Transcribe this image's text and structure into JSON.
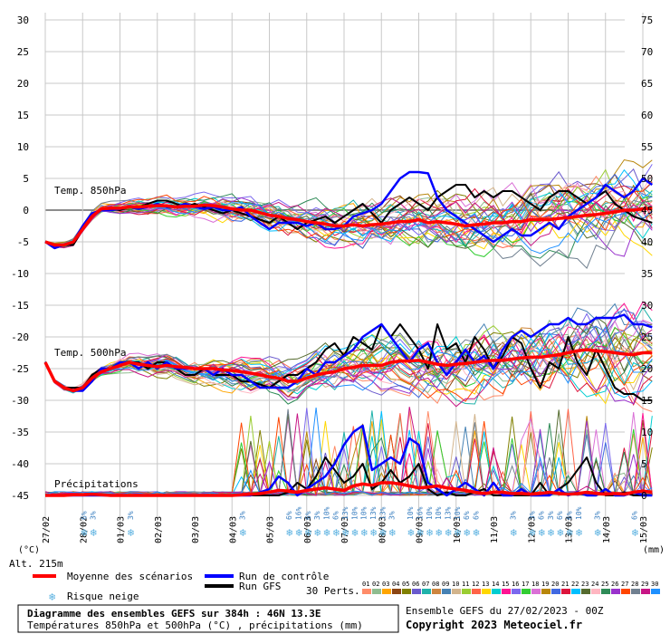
{
  "chart_data": {
    "type": "line",
    "title": "Diagramme des ensembles GEFS sur 384h : 46N 13.3E",
    "subtitle": "Températures 850hPa et 500hPa (°C) , précipitations (mm)",
    "run_info": "Ensemble GEFS du 27/02/2023 - 00Z",
    "copyright": "Copyright 2023 Meteociel.fr",
    "altitude_label": "Alt. 215m",
    "left_unit": "(°C)",
    "right_unit": "(mm)",
    "left_axis_ticks": [
      "30",
      "25",
      "20",
      "15",
      "10",
      "5",
      "0",
      "-5",
      "-10",
      "-15",
      "-20",
      "-25",
      "-30",
      "-35",
      "-40",
      "-45"
    ],
    "right_axis_ticks": [
      "75",
      "70",
      "65",
      "60",
      "55",
      "50",
      "45",
      "40",
      "35",
      "30",
      "25",
      "20",
      "15",
      "10",
      "5",
      "0"
    ],
    "left_ylim": [
      -45,
      30
    ],
    "right_ylim": [
      0,
      75
    ],
    "x_ticks": [
      "27/02",
      "28/02",
      "01/03",
      "02/03",
      "03/03",
      "04/03",
      "05/03",
      "06/03",
      "07/03",
      "08/03",
      "09/03",
      "10/03",
      "11/03",
      "12/03",
      "13/03",
      "14/03",
      "15/03"
    ],
    "section_labels": {
      "t850": "Temp. 850hPa",
      "t500": "Temp. 500hPa",
      "precip": "Précipitations"
    },
    "legend": {
      "mean": "Moyenne des scénarios",
      "control": "Run de contrôle",
      "gfs": "Run GFS",
      "snow": "Risque neige",
      "perts_label": "30 Perts.",
      "pert_numbers": [
        "01",
        "02",
        "03",
        "04",
        "05",
        "06",
        "07",
        "08",
        "09",
        "10",
        "11",
        "12",
        "13",
        "14",
        "15",
        "16",
        "17",
        "18",
        "19",
        "20",
        "21",
        "22",
        "23",
        "24",
        "25",
        "26",
        "27",
        "28",
        "29",
        "30"
      ]
    },
    "colors": {
      "mean": "#ff0000",
      "control": "#0000ff",
      "gfs": "#000000",
      "snow": "#58b0e0",
      "perts": [
        "#ff8c69",
        "#8fbc8f",
        "#ffa500",
        "#8b4513",
        "#808000",
        "#6a5acd",
        "#20b2aa",
        "#cd853f",
        "#4682b4",
        "#d2b48c",
        "#9acd32",
        "#ff6347",
        "#ffd700",
        "#00ced1",
        "#ff1493",
        "#7b68ee",
        "#32cd32",
        "#da70d6",
        "#b8860b",
        "#4169e1",
        "#dc143c",
        "#00bfff",
        "#556b2f",
        "#ffb6c1",
        "#2e8b57",
        "#9932cc",
        "#ff4500",
        "#708090",
        "#c71585",
        "#1e90ff"
      ]
    },
    "snow_risk": [
      {
        "x": "28/02 00h",
        "value": "6%"
      },
      {
        "x": "28/02 06h",
        "value": "3%"
      },
      {
        "x": "01/03 06h",
        "value": "3%"
      },
      {
        "x": "04/03 06h",
        "value": "3%"
      },
      {
        "x": "05/03 12h",
        "value": "6%"
      },
      {
        "x": "05/03 18h",
        "value": "16%"
      },
      {
        "x": "06/03 00h",
        "value": "6%"
      },
      {
        "x": "06/03 06h",
        "value": "3%"
      },
      {
        "x": "06/03 12h",
        "value": "10%"
      },
      {
        "x": "06/03 18h",
        "value": "6%"
      },
      {
        "x": "07/03 00h",
        "value": "13%"
      },
      {
        "x": "07/03 06h",
        "value": "10%"
      },
      {
        "x": "07/03 12h",
        "value": "10%"
      },
      {
        "x": "07/03 18h",
        "value": "13%"
      },
      {
        "x": "08/03 00h",
        "value": "13%"
      },
      {
        "x": "08/03 06h",
        "value": "3%"
      },
      {
        "x": "08/03 18h",
        "value": "10%"
      },
      {
        "x": "09/03 00h",
        "value": "16%"
      },
      {
        "x": "09/03 06h",
        "value": "10%"
      },
      {
        "x": "09/03 12h",
        "value": "10%"
      },
      {
        "x": "09/03 18h",
        "value": "13%"
      },
      {
        "x": "10/03 00h",
        "value": "10%"
      },
      {
        "x": "10/03 06h",
        "value": "6%"
      },
      {
        "x": "10/03 12h",
        "value": "6%"
      },
      {
        "x": "11/03 12h",
        "value": "3%"
      },
      {
        "x": "12/03 00h",
        "value": "3%"
      },
      {
        "x": "12/03 06h",
        "value": "6%"
      },
      {
        "x": "12/03 12h",
        "value": "3%"
      },
      {
        "x": "12/03 18h",
        "value": "6%"
      },
      {
        "x": "13/03 00h",
        "value": "6%"
      },
      {
        "x": "13/03 06h",
        "value": "10%"
      },
      {
        "x": "13/03 18h",
        "value": "3%"
      },
      {
        "x": "14/03 18h",
        "value": "6%"
      }
    ],
    "series": [
      {
        "name": "Moyenne des scénarios (850hPa)",
        "step_hours": 6,
        "values": [
          -5,
          -5.5,
          -5.5,
          -5,
          -3,
          -1,
          0.2,
          0.3,
          0.3,
          0.5,
          0.5,
          0.6,
          0.7,
          0.7,
          0.5,
          0.6,
          0.6,
          0.8,
          0.7,
          0.5,
          0.2,
          0,
          0,
          -0.4,
          -0.8,
          -1,
          -1.3,
          -1.5,
          -1.8,
          -2,
          -2.2,
          -2.5,
          -2.5,
          -2.3,
          -2.5,
          -2.3,
          -2.2,
          -2,
          -1.8,
          -1.8,
          -1.5,
          -2,
          -1.8,
          -2,
          -2.2,
          -2.5,
          -2.3,
          -2.2,
          -2,
          -2,
          -1.8,
          -1.8,
          -1.5,
          -1.5,
          -1.5,
          -1.3,
          -1.2,
          -1,
          -0.8,
          -0.7,
          -0.5,
          -0.3,
          0,
          0,
          0.2,
          0.3
        ]
      },
      {
        "name": "Moyenne des scénarios (500hPa)",
        "step_hours": 6,
        "values": [
          -24,
          -27,
          -28,
          -28.5,
          -28,
          -26.5,
          -25.5,
          -25,
          -24.5,
          -24,
          -24.3,
          -24.5,
          -24.7,
          -24.5,
          -24.7,
          -24.8,
          -25,
          -25,
          -25,
          -25.2,
          -25.3,
          -25.5,
          -25.7,
          -26,
          -26.3,
          -26.5,
          -27,
          -27,
          -26.5,
          -26,
          -25.7,
          -25.5,
          -25,
          -24.8,
          -24.5,
          -24.5,
          -24.5,
          -24,
          -23.8,
          -23.8,
          -23.7,
          -24,
          -24.3,
          -24.5,
          -24.3,
          -24.2,
          -24,
          -23.8,
          -23.7,
          -23.7,
          -23.5,
          -23.3,
          -23.2,
          -23.2,
          -23,
          -22.8,
          -22.5,
          -22.2,
          -22,
          -22.2,
          -22.3,
          -22.5,
          -22.7,
          -22.8,
          -22.5,
          -22.5
        ]
      },
      {
        "name": "Moyenne des scénarios (Précipitations)",
        "step_hours": 6,
        "values": [
          0,
          0,
          0,
          0.1,
          0.1,
          0.2,
          0.1,
          0,
          0,
          0,
          0,
          0,
          0,
          0,
          0,
          0,
          0,
          0,
          0,
          0,
          0,
          0.1,
          0.2,
          0.3,
          0.5,
          0.8,
          0.7,
          0.5,
          0.8,
          1,
          1.2,
          1,
          0.8,
          1.5,
          1.8,
          1.6,
          2,
          2,
          1.8,
          1.5,
          1.2,
          1.3,
          1.5,
          1.2,
          1,
          0.8,
          0.5,
          0.3,
          0.5,
          0.5,
          0.3,
          0.3,
          0.2,
          0.3,
          0.5,
          0.3,
          0.2,
          0.3,
          0.5,
          0.3,
          0.2,
          0.3,
          0.2,
          0.5,
          0.7,
          0.5
        ]
      },
      {
        "name": "Run de contrôle (850hPa)",
        "step_hours": 6,
        "values": [
          -5,
          -6,
          -5.5,
          -5,
          -2.5,
          -0.5,
          0,
          0,
          0.2,
          0.5,
          0.2,
          0.5,
          1,
          0.5,
          0.5,
          1,
          0.5,
          0.2,
          0.5,
          0,
          0,
          0.5,
          -1,
          -2,
          -3,
          -2,
          -2,
          -2,
          -2.5,
          -2,
          -3,
          -3,
          -2.5,
          -1,
          -0.5,
          0,
          1,
          3,
          5,
          6,
          6,
          5.8,
          2,
          0,
          -1,
          -2,
          -3,
          -4,
          -5,
          -4,
          -3,
          -4,
          -4,
          -3,
          -2,
          -3,
          -1,
          0,
          1,
          2,
          4,
          3,
          2,
          3,
          5,
          4
        ]
      },
      {
        "name": "Run de contrôle (500hPa)",
        "step_hours": 6,
        "values": [
          -24,
          -27,
          -28,
          -28.5,
          -28.5,
          -27,
          -25,
          -25,
          -24,
          -24,
          -25,
          -24,
          -25,
          -24,
          -25,
          -25,
          -25,
          -25,
          -26,
          -25,
          -26,
          -26,
          -27,
          -28,
          -28,
          -28,
          -28,
          -27,
          -25,
          -26,
          -24,
          -24,
          -23,
          -22,
          -20,
          -19,
          -18,
          -20,
          -22,
          -24,
          -22,
          -21,
          -24,
          -26,
          -24,
          -22,
          -24,
          -23,
          -25,
          -22,
          -20,
          -19,
          -20,
          -19,
          -18,
          -18,
          -17,
          -18,
          -18,
          -17,
          -17,
          -17,
          -16.5,
          -18,
          -18,
          -18.5
        ]
      },
      {
        "name": "Run de contrôle (Précipitations)",
        "step_hours": 6,
        "values": [
          0,
          0,
          0,
          0,
          0,
          0,
          0,
          0,
          0,
          0,
          0,
          0,
          0,
          0,
          0,
          0,
          0,
          0,
          0,
          0,
          0,
          0,
          0,
          0.5,
          1,
          3,
          2,
          0,
          1,
          2,
          3,
          5,
          8,
          10,
          11,
          4,
          5,
          6,
          5,
          9,
          8,
          2,
          1,
          0,
          1,
          2,
          1,
          0,
          2,
          0,
          0,
          1,
          0,
          0,
          0,
          1,
          0,
          0.5,
          0,
          0,
          1,
          0,
          0,
          0.5,
          0,
          0
        ]
      },
      {
        "name": "Run GFS (850hPa)",
        "step_hours": 6,
        "values": [
          -5,
          -6,
          -5.5,
          -5.5,
          -3,
          -1,
          0,
          0.2,
          0,
          0.5,
          0.5,
          1,
          1.5,
          1.5,
          1,
          0.5,
          1,
          0.5,
          0,
          -0.5,
          0,
          -0.5,
          -1,
          -1.5,
          -2,
          -1,
          -2,
          -3,
          -2,
          -1.5,
          -1,
          -2,
          -1,
          0,
          1,
          -0.5,
          -2,
          0,
          1,
          2,
          1,
          0,
          2,
          3,
          4,
          4,
          2,
          3,
          2,
          3,
          3,
          2,
          1,
          0,
          2,
          3,
          3,
          2,
          1,
          2,
          3,
          1,
          0,
          -1,
          -1.5,
          -2
        ]
      },
      {
        "name": "Run GFS (500hPa)",
        "step_hours": 6,
        "values": [
          -24,
          -27,
          -28,
          -28,
          -28,
          -26,
          -25,
          -25,
          -24,
          -24,
          -24,
          -25,
          -24,
          -24,
          -25,
          -26,
          -26,
          -25,
          -26,
          -26,
          -26,
          -27,
          -27,
          -27.5,
          -28,
          -27,
          -26,
          -26,
          -25,
          -24,
          -22,
          -21,
          -23,
          -20,
          -21,
          -22,
          -18,
          -20,
          -18,
          -20,
          -22,
          -25,
          -18,
          -22,
          -21,
          -24,
          -20,
          -22,
          -25,
          -23,
          -20,
          -21,
          -25,
          -28,
          -24,
          -25,
          -20,
          -24,
          -26,
          -22,
          -25,
          -28,
          -29,
          -29,
          -30,
          -30
        ]
      },
      {
        "name": "Run GFS (Précipitations)",
        "step_hours": 6,
        "values": [
          0,
          0,
          0,
          0,
          0,
          0,
          0,
          0,
          0,
          0,
          0,
          0,
          0,
          0,
          0,
          0,
          0,
          0,
          0,
          0,
          0,
          0,
          0,
          0,
          0,
          0,
          0.5,
          2,
          1,
          3,
          6,
          4,
          2,
          3,
          5,
          1,
          2,
          4,
          2,
          3,
          5,
          1,
          0,
          0.5,
          0,
          0,
          0.5,
          1,
          0,
          0,
          0,
          0,
          0,
          2,
          0,
          1,
          2,
          4,
          6,
          2,
          0,
          0,
          0.5,
          0,
          0,
          0
        ]
      }
    ]
  }
}
